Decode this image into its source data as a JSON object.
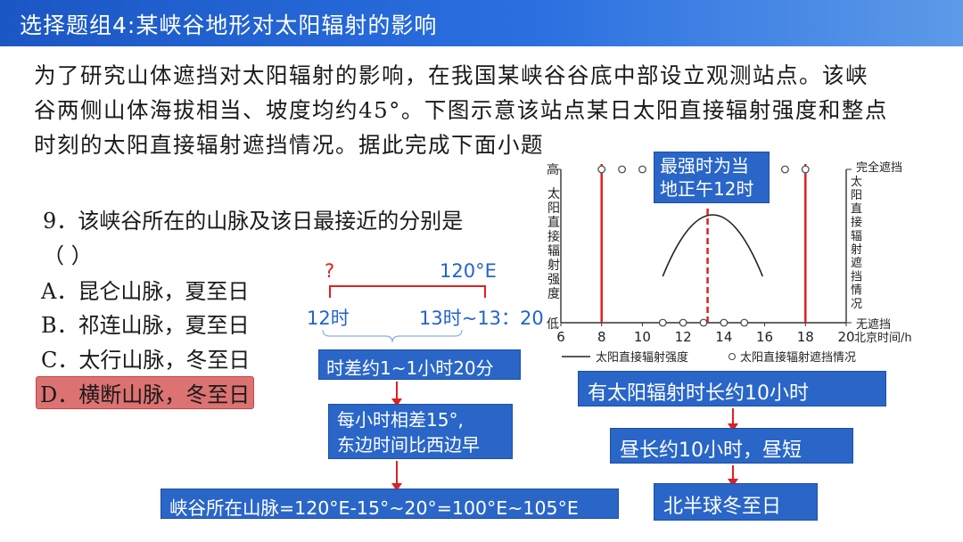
{
  "header": {
    "title": "选择题组4:某峡谷地形对太阳辐射的影响"
  },
  "intro": [
    "为了研究山体遮挡对太阳辐射的影响，在我国某峡谷谷底中部设立观测站点。该峡",
    "谷两侧山体海拔相当、坡度均约45°。下图示意该站点某日太阳直接辐射强度和整点",
    "时刻的太阳直接辐射遮挡情况。据此完成下面小题"
  ],
  "question": {
    "stem": "9．该峡谷所在的山脉及该日最接近的分别是",
    "paren": "（    ）",
    "options": [
      "A．昆仑山脉，夏至日",
      "B．祁连山脉，夏至日",
      "C．太行山脉，冬至日",
      "D．横断山脉，冬至日"
    ]
  },
  "analysis": {
    "question_mark": "?",
    "lon_120": "120°E",
    "time_12": "12时",
    "time_13": "13时~13：20",
    "box_timediff": "时差约1~1小时20分",
    "box_per_hour_1": "每小时相差15°,",
    "box_per_hour_2": "东边时间比西边早",
    "box_result": "峡谷所在山脉=120°E-15°~20°=100°E~105°E",
    "box_duration": "有太阳辐射时长约10小时",
    "box_daylength": "昼长约10小时，昼短",
    "box_solstice": "北半球冬至日",
    "box_noon_1": "最强时为当",
    "box_noon_2": "地正午12时"
  },
  "chart_data": {
    "type": "line",
    "x_ticks": [
      "6",
      "8",
      "10",
      "12",
      "14",
      "16",
      "18",
      "20"
    ],
    "xlim": [
      6,
      20
    ],
    "left_ylabel_top": "高",
    "left_ylabel_bottom": "低",
    "left_ylabel": [
      "太",
      "阳",
      "直",
      "接",
      "辐",
      "射",
      "强",
      "度"
    ],
    "right_ylabel_top": "完全遮挡",
    "right_ylabel_bottom": "无遮挡",
    "right_ylabel": [
      "太",
      "阳",
      "直",
      "接",
      "辐",
      "射",
      "遮",
      "挡",
      "情",
      "况"
    ],
    "xlabel": "北京时间/h",
    "legend_line": "太阳直接辐射强度",
    "legend_dots": "太阳直接辐射遮挡情况",
    "curve": {
      "x_start": 11,
      "x_peak": 13.2,
      "x_end": 15.9
    },
    "blocked_hours": [
      8,
      9,
      10,
      16,
      17,
      18
    ],
    "unblocked_hours": [
      11,
      12,
      13,
      14,
      15
    ],
    "sun_lines": [
      8,
      18
    ],
    "noon_line": 13.2,
    "colors": {
      "curve": "#222222",
      "sun_line": "#e02020",
      "axis": "#333333"
    }
  }
}
